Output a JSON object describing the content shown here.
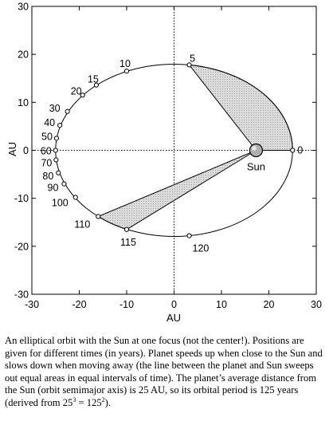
{
  "plot": {
    "x_label": "AU",
    "y_label": "AU",
    "x_ticks": [
      -30,
      -20,
      -10,
      0,
      10,
      20,
      30
    ],
    "y_ticks": [
      30,
      20,
      10,
      0,
      -10,
      -20,
      -30
    ],
    "xlim": [
      -30,
      30
    ],
    "ylim": [
      -30,
      30
    ]
  },
  "orbit": {
    "semi_major_axis": 25,
    "center": [
      0,
      0
    ],
    "sun": {
      "label": "Sun",
      "x": 17.3,
      "y": 0
    },
    "points": [
      {
        "t": "0",
        "x": 25,
        "y": 0
      },
      {
        "t": "5",
        "x": 3.2,
        "y": 17.8
      },
      {
        "t": "10",
        "x": -10,
        "y": 16.5
      },
      {
        "t": "15",
        "x": -16.4,
        "y": 13.6
      },
      {
        "t": "20",
        "x": -19.3,
        "y": 11.5
      },
      {
        "t": "30",
        "x": -22.5,
        "y": 8.1
      },
      {
        "t": "40",
        "x": -24.1,
        "y": 5.2
      },
      {
        "t": "50",
        "x": -24.8,
        "y": 2.5
      },
      {
        "t": "60",
        "x": -25,
        "y": 0
      },
      {
        "t": "70",
        "x": -24.9,
        "y": -2
      },
      {
        "t": "80",
        "x": -24.4,
        "y": -4.7
      },
      {
        "t": "90",
        "x": -23.2,
        "y": -7
      },
      {
        "t": "100",
        "x": -20.8,
        "y": -9.8
      },
      {
        "t": "110",
        "x": -16,
        "y": -13.8
      },
      {
        "t": "115",
        "x": -10,
        "y": -16.5
      },
      {
        "t": "120",
        "x": 3.2,
        "y": -17.8
      }
    ],
    "swept_areas": [
      {
        "from": "0",
        "to": "5"
      },
      {
        "from": "110",
        "to": "115"
      }
    ],
    "colors": {
      "shade": "#dcdcdc",
      "line": "#000000",
      "sun_fill": "#b0b0b0"
    }
  },
  "caption": {
    "text": "An elliptical orbit with the Sun at one focus (not the center!). Positions are given for different times (in years). Planet speeds up when close to the Sun and slows down when moving away (the line between the planet and Sun sweeps out equal areas in equal intervals of time). The planet’s average distance  from the Sun (orbit semimajor axis) is 25  AU, so its orbital period is 125 years (derived from 25",
    "exp1": "3",
    "mid": " = 125",
    "exp2": "2",
    "end": ")."
  }
}
